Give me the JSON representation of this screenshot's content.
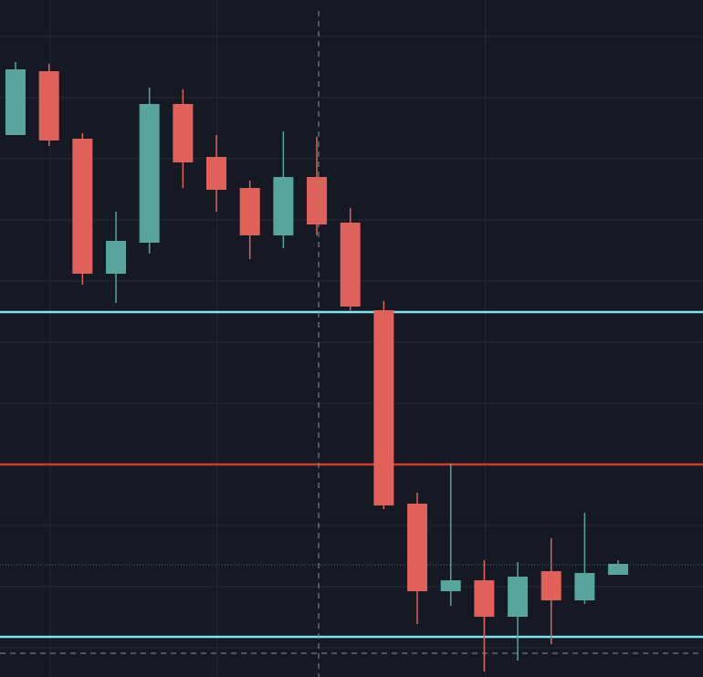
{
  "chart_data": {
    "type": "candlestick",
    "open": [
      594,
      664,
      590,
      442,
      476,
      628,
      570,
      536,
      484,
      548,
      498,
      402,
      190,
      94,
      106,
      66,
      116,
      84,
      112
    ],
    "high": [
      674,
      672,
      596,
      510,
      646,
      644,
      594,
      544,
      598,
      592,
      514,
      412,
      202,
      234,
      128,
      126,
      152,
      180,
      128
    ],
    "low": [
      594,
      582,
      430,
      410,
      464,
      536,
      510,
      458,
      470,
      484,
      402,
      184,
      58,
      78,
      6,
      18,
      36,
      80,
      112
    ],
    "close": [
      666,
      588,
      442,
      478,
      628,
      564,
      534,
      484,
      548,
      496,
      406,
      188,
      94,
      106,
      66,
      110,
      84,
      114,
      124
    ],
    "up_color": "#56a49b",
    "down_color": "#e0605a",
    "ylim": [
      0,
      742
    ],
    "yticks": [
      32,
      99,
      166,
      233,
      300,
      367,
      434,
      501,
      568,
      635,
      702
    ],
    "xticks": [
      1,
      6,
      14
    ],
    "grid": true,
    "levels": [
      {
        "value": 400,
        "color": "#7fe6f0",
        "style": "solid"
      },
      {
        "value": 44,
        "color": "#7fe6f0",
        "style": "solid"
      },
      {
        "value": 233,
        "color": "#d23a2c",
        "style": "solid"
      },
      {
        "value": 123,
        "color": "#3f7a74",
        "style": "dotted"
      },
      {
        "value": 26,
        "color": "#8a8d96",
        "style": "dashed"
      }
    ],
    "crosshair_x": 9
  }
}
